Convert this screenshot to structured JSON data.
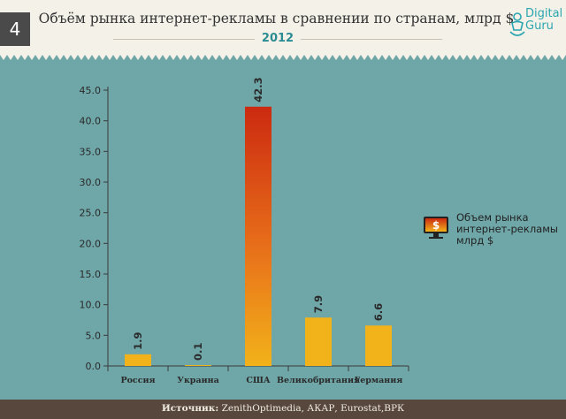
{
  "header": {
    "page_number": "4",
    "title": "Объём рынка интернет-рекламы в сравнении по странам, млрд $",
    "year": "2012",
    "logo_line1": "Digital",
    "logo_line2": "Guru"
  },
  "legend": {
    "icon": "monitor-dollar-icon",
    "line1": "Объем рынка",
    "line2": "интернет-рекламы",
    "line3": "млрд $"
  },
  "footer": {
    "source_label": "Источник:",
    "source_text": " ZenithOptimedia, АКАР, Eurostat,ВРК"
  },
  "colors": {
    "background": "#6fa6a8",
    "header_bg": "#f4f1e8",
    "bar": "#f2b21a",
    "bar_highlight_top": "#cc2a10",
    "year_text": "#2a8c92",
    "footer_bg": "#57473c"
  },
  "chart_data": {
    "type": "bar",
    "categories": [
      "Россия",
      "Украина",
      "США",
      "Великобритания",
      "Германия"
    ],
    "values": [
      1.9,
      0.1,
      42.3,
      7.9,
      6.6
    ],
    "data_labels": [
      "1.9",
      "0.1",
      "42.3",
      "7.9",
      "6.6"
    ],
    "yticks": [
      "0.0",
      "5.0",
      "10.0",
      "15.0",
      "20.0",
      "25.0",
      "30.0",
      "35.0",
      "40.0",
      "45.0"
    ],
    "ylim": [
      0,
      45
    ],
    "title": "",
    "xlabel": "",
    "ylabel": "",
    "grid": false,
    "legend_position": "right"
  }
}
